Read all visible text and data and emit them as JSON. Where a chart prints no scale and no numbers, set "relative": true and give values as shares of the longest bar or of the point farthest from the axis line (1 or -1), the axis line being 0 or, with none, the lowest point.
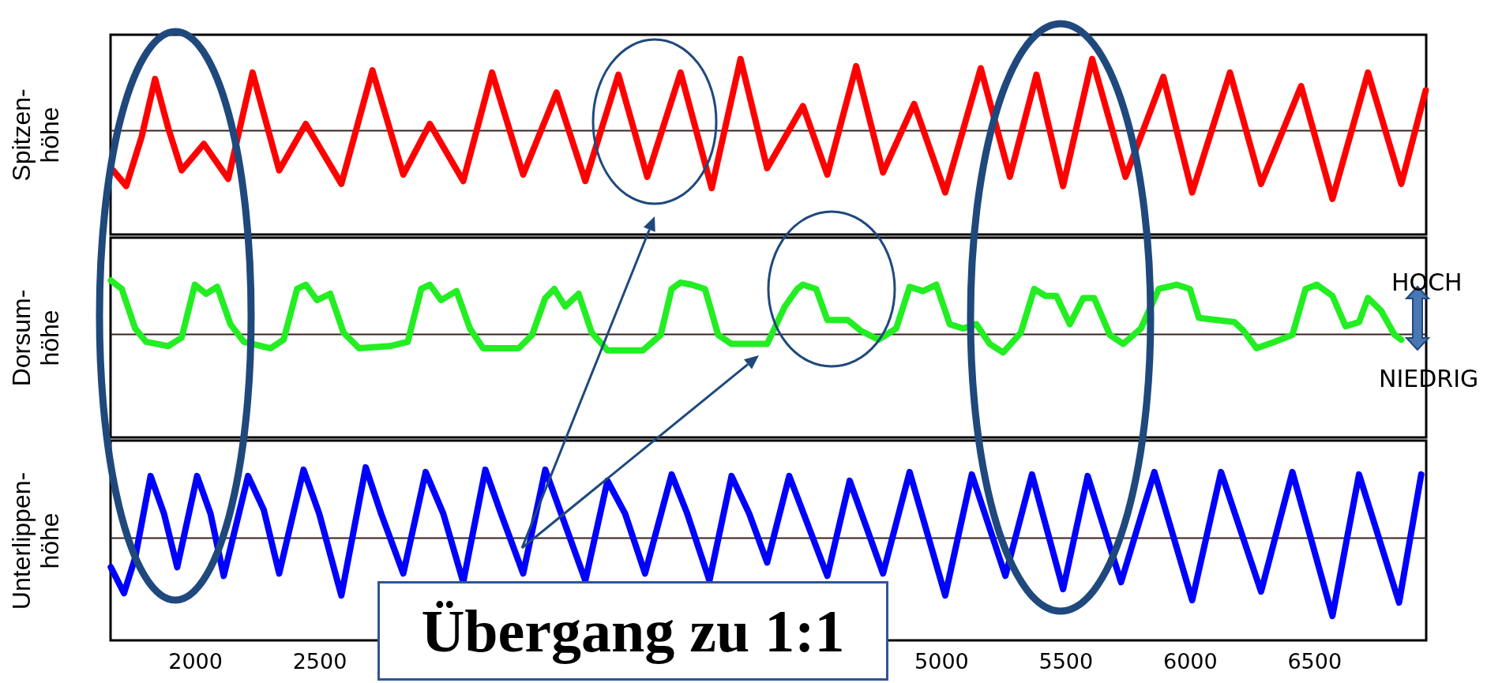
{
  "chart_data": [
    {
      "type": "line",
      "relative": true,
      "ylabel": "Spitzen-höhe",
      "xlim": [
        1660,
        6950
      ],
      "tick_labels": false,
      "series": [
        {
          "color": "#ff0000",
          "x": [
            1670,
            1723,
            1785,
            1839,
            1892,
            1946,
            2035,
            2133,
            2231,
            2338,
            2445,
            2588,
            2713,
            2837,
            2944,
            3078,
            3194,
            3319,
            3453,
            3569,
            3702,
            3818,
            3952,
            4077,
            4193,
            4300,
            4444,
            4542,
            4658,
            4766,
            4891,
            5016,
            5159,
            5276,
            5383,
            5490,
            5607,
            5741,
            5893,
            6009,
            6161,
            6286,
            6447,
            6573,
            6716,
            6850,
            6948
          ],
          "values": [
            -0.56,
            -0.78,
            -0.09,
            0.72,
            0.03,
            -0.56,
            -0.19,
            -0.68,
            0.81,
            -0.56,
            0.09,
            -0.75,
            0.84,
            -0.62,
            0.09,
            -0.71,
            0.81,
            -0.62,
            0.53,
            -0.71,
            0.78,
            -0.65,
            0.81,
            -0.81,
            1.0,
            -0.53,
            0.34,
            -0.62,
            0.9,
            -0.59,
            0.37,
            -0.87,
            0.87,
            -0.65,
            0.78,
            -0.78,
            1.0,
            -0.65,
            0.75,
            -0.87,
            0.81,
            -0.75,
            0.62,
            -0.96,
            0.81,
            -0.75,
            0.56
          ]
        }
      ]
    },
    {
      "type": "line",
      "relative": true,
      "ylabel": "Dorsum-höhe",
      "xlim": [
        1660,
        6950
      ],
      "tick_labels": false,
      "annotations": [
        "HOCH",
        "NIEDRIG"
      ],
      "series": [
        {
          "color": "#22ee22",
          "x": [
            1661,
            1705,
            1759,
            1803,
            1892,
            1946,
            1999,
            2044,
            2089,
            2142,
            2196,
            2303,
            2356,
            2410,
            2445,
            2490,
            2543,
            2597,
            2659,
            2784,
            2855,
            2909,
            2944,
            2989,
            3051,
            3105,
            3158,
            3301,
            3355,
            3408,
            3444,
            3488,
            3542,
            3595,
            3658,
            3800,
            3872,
            3916,
            3952,
            3996,
            4050,
            4103,
            4157,
            4300,
            4371,
            4421,
            4444,
            4497,
            4542,
            4623,
            4676,
            4748,
            4819,
            4873,
            4927,
            4980,
            5034,
            5088,
            5141,
            5195,
            5249,
            5320,
            5374,
            5419,
            5463,
            5517,
            5571,
            5615,
            5678,
            5732,
            5803,
            5875,
            5946,
            6000,
            6036,
            6107,
            6179,
            6215,
            6268,
            6340,
            6412,
            6465,
            6510,
            6573,
            6626,
            6680,
            6716,
            6769,
            6823,
            6850
          ],
          "values": [
            1.0,
            0.84,
            0.1,
            -0.15,
            -0.23,
            -0.07,
            0.92,
            0.75,
            0.88,
            0.18,
            -0.15,
            -0.27,
            -0.11,
            0.84,
            0.92,
            0.63,
            0.75,
            0.02,
            -0.27,
            -0.23,
            -0.15,
            0.84,
            0.92,
            0.63,
            0.8,
            0.1,
            -0.27,
            -0.27,
            -0.02,
            0.67,
            0.84,
            0.51,
            0.75,
            0.02,
            -0.31,
            -0.31,
            -0.02,
            0.84,
            0.96,
            0.92,
            0.84,
            -0.02,
            -0.19,
            -0.19,
            0.51,
            0.84,
            0.92,
            0.84,
            0.26,
            0.26,
            0.06,
            -0.11,
            0.1,
            0.88,
            0.8,
            0.92,
            0.18,
            0.1,
            0.18,
            -0.19,
            -0.35,
            0.02,
            0.84,
            0.71,
            0.71,
            0.18,
            0.67,
            0.67,
            -0.02,
            -0.19,
            0.1,
            0.84,
            0.92,
            0.84,
            0.3,
            0.26,
            0.22,
            0.06,
            -0.27,
            -0.15,
            -0.02,
            0.84,
            0.92,
            0.71,
            0.14,
            0.22,
            0.67,
            0.43,
            -0.02,
            -0.11
          ]
        }
      ]
    },
    {
      "type": "line",
      "relative": true,
      "ylabel": "Unterlippen-höhe",
      "xlim": [
        1660,
        6950
      ],
      "xticks": [
        2000,
        2500,
        5000,
        5500,
        6000,
        6500
      ],
      "tick_labels": "x",
      "annotations": [
        "Übergang zu 1:1"
      ],
      "series": [
        {
          "color": "#0000ff",
          "x": [
            1661,
            1714,
            1759,
            1821,
            1875,
            1928,
            2008,
            2062,
            2115,
            2213,
            2276,
            2338,
            2436,
            2499,
            2588,
            2686,
            2748,
            2837,
            2927,
            2998,
            3078,
            3167,
            3230,
            3319,
            3408,
            3569,
            3658,
            3729,
            3809,
            3916,
            3979,
            4068,
            4157,
            4228,
            4300,
            4389,
            4542,
            4632,
            4766,
            4873,
            5016,
            5123,
            5258,
            5365,
            5490,
            5589,
            5723,
            5857,
            6009,
            6125,
            6286,
            6412,
            6573,
            6680,
            6841,
            6930
          ],
          "values": [
            -0.38,
            -0.71,
            -0.26,
            0.78,
            0.3,
            -0.38,
            0.78,
            0.3,
            -0.49,
            0.78,
            0.35,
            -0.46,
            0.86,
            0.3,
            -0.74,
            0.89,
            0.3,
            -0.46,
            0.83,
            0.3,
            -0.57,
            0.86,
            0.3,
            -0.46,
            0.86,
            -0.55,
            0.72,
            0.3,
            -0.46,
            0.8,
            0.3,
            -0.55,
            0.78,
            0.3,
            -0.32,
            0.78,
            -0.49,
            0.72,
            -0.46,
            0.83,
            -0.74,
            0.8,
            -0.49,
            0.8,
            -0.66,
            0.78,
            -0.57,
            0.83,
            -0.8,
            0.83,
            -0.69,
            0.83,
            -1.0,
            0.8,
            -0.83,
            0.8
          ]
        }
      ]
    }
  ]
}
